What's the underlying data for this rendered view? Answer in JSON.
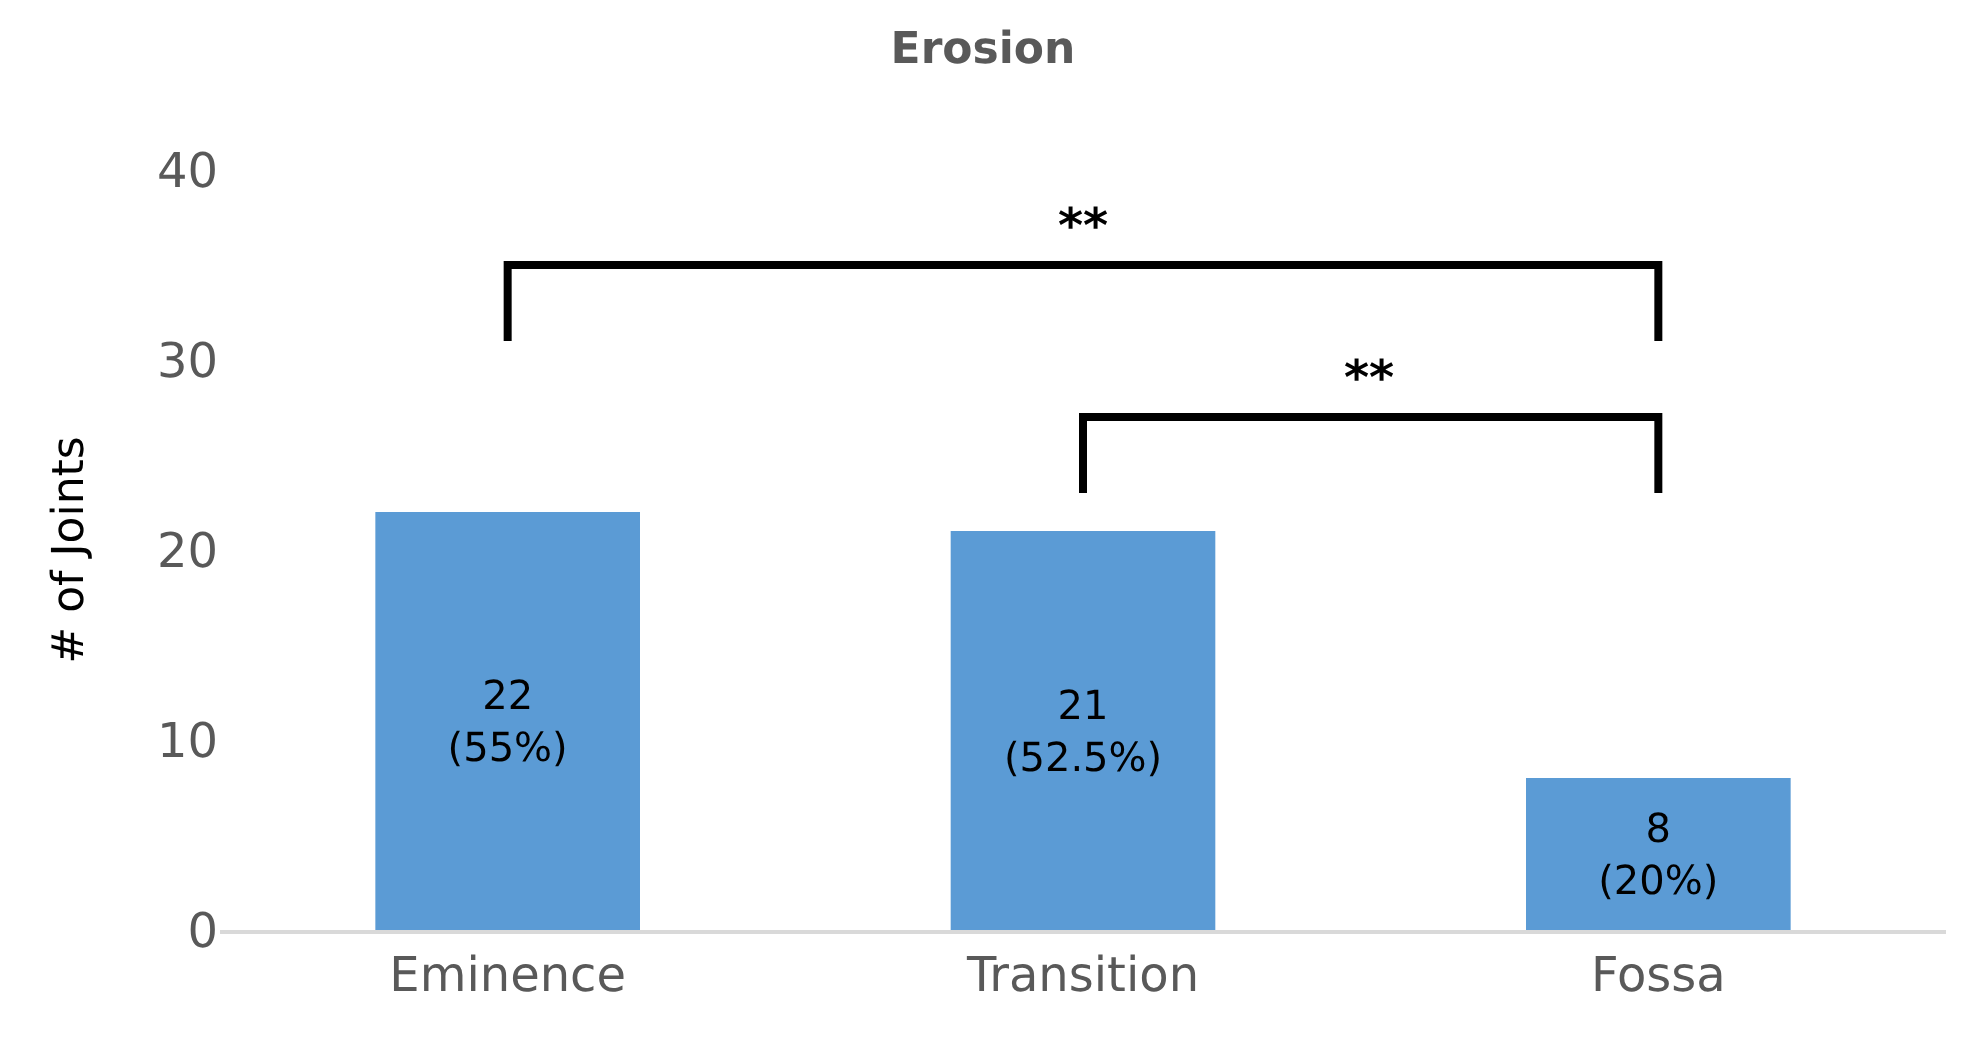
{
  "chart_data": {
    "type": "bar",
    "title": "Erosion",
    "ylabel": "# of Joints",
    "categories": [
      "Eminence",
      "Transition",
      "Fossa"
    ],
    "values": [
      22,
      21,
      8
    ],
    "value_labels": [
      "22\n(55%)",
      "21\n(52.5%)",
      "8\n(20%)"
    ],
    "color": "#5b9bd5",
    "ylim": [
      0,
      40
    ],
    "yticks": [
      0,
      10,
      20,
      30,
      40
    ],
    "grid": false,
    "annotations": [
      "**",
      "**"
    ]
  }
}
